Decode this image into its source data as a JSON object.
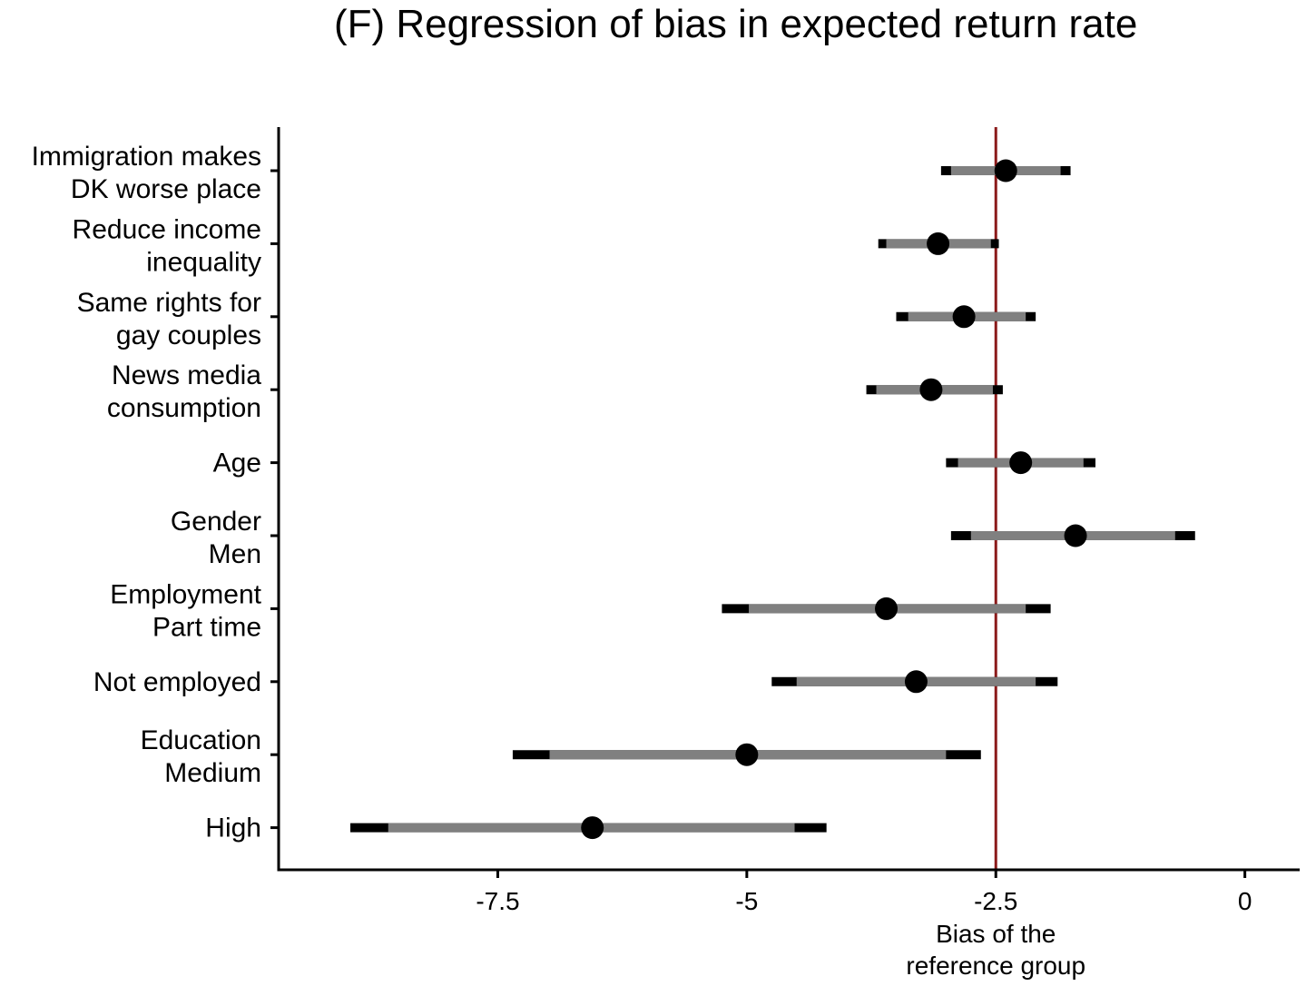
{
  "chart_data": {
    "type": "forest",
    "title": "(F) Regression of bias in expected return rate",
    "xlabel": "",
    "ylabel": "",
    "xlim": [
      -9.7,
      0.55
    ],
    "x_ticks": [
      -7.5,
      -5,
      -2.5,
      0
    ],
    "x_tick_labels": [
      "-7.5",
      "-5",
      "-2.5",
      "0"
    ],
    "reference_line": {
      "value": -2.5,
      "label_lines": [
        "Bias of the",
        "reference group"
      ],
      "color": "#8b1a1a"
    },
    "rows": [
      {
        "label_lines": [
          "Immigration makes",
          "DK worse place"
        ],
        "estimate": -2.4,
        "ci_inner": [
          -2.95,
          -1.85
        ],
        "ci_outer": [
          -3.05,
          -1.75
        ]
      },
      {
        "label_lines": [
          "Reduce income",
          "inequality"
        ],
        "estimate": -3.08,
        "ci_inner": [
          -3.6,
          -2.55
        ],
        "ci_outer": [
          -3.68,
          -2.47
        ]
      },
      {
        "label_lines": [
          "Same rights for",
          "gay couples"
        ],
        "estimate": -2.82,
        "ci_inner": [
          -3.38,
          -2.2
        ],
        "ci_outer": [
          -3.5,
          -2.1
        ]
      },
      {
        "label_lines": [
          "News media",
          "consumption"
        ],
        "estimate": -3.15,
        "ci_inner": [
          -3.7,
          -2.53
        ],
        "ci_outer": [
          -3.8,
          -2.43
        ]
      },
      {
        "label_lines": [
          "Age"
        ],
        "estimate": -2.25,
        "ci_inner": [
          -2.88,
          -1.62
        ],
        "ci_outer": [
          -3.0,
          -1.5
        ]
      },
      {
        "label_lines": [
          "Gender",
          "Men"
        ],
        "estimate": -1.7,
        "ci_inner": [
          -2.75,
          -0.7
        ],
        "ci_outer": [
          -2.95,
          -0.5
        ]
      },
      {
        "label_lines": [
          "Employment",
          "Part time"
        ],
        "estimate": -3.6,
        "ci_inner": [
          -4.98,
          -2.2
        ],
        "ci_outer": [
          -5.25,
          -1.95
        ]
      },
      {
        "label_lines": [
          "Not employed"
        ],
        "estimate": -3.3,
        "ci_inner": [
          -4.5,
          -2.1
        ],
        "ci_outer": [
          -4.75,
          -1.88
        ]
      },
      {
        "label_lines": [
          "Education",
          "Medium"
        ],
        "estimate": -5.0,
        "ci_inner": [
          -6.98,
          -3.0
        ],
        "ci_outer": [
          -7.35,
          -2.65
        ]
      },
      {
        "label_lines": [
          "High"
        ],
        "estimate": -6.55,
        "ci_inner": [
          -8.6,
          -4.52
        ],
        "ci_outer": [
          -8.98,
          -4.2
        ]
      }
    ],
    "colors": {
      "outer_interval": "#000000",
      "inner_interval": "#808080",
      "point": "#000000",
      "axis": "#000000"
    },
    "grid": false,
    "legend": "none"
  }
}
